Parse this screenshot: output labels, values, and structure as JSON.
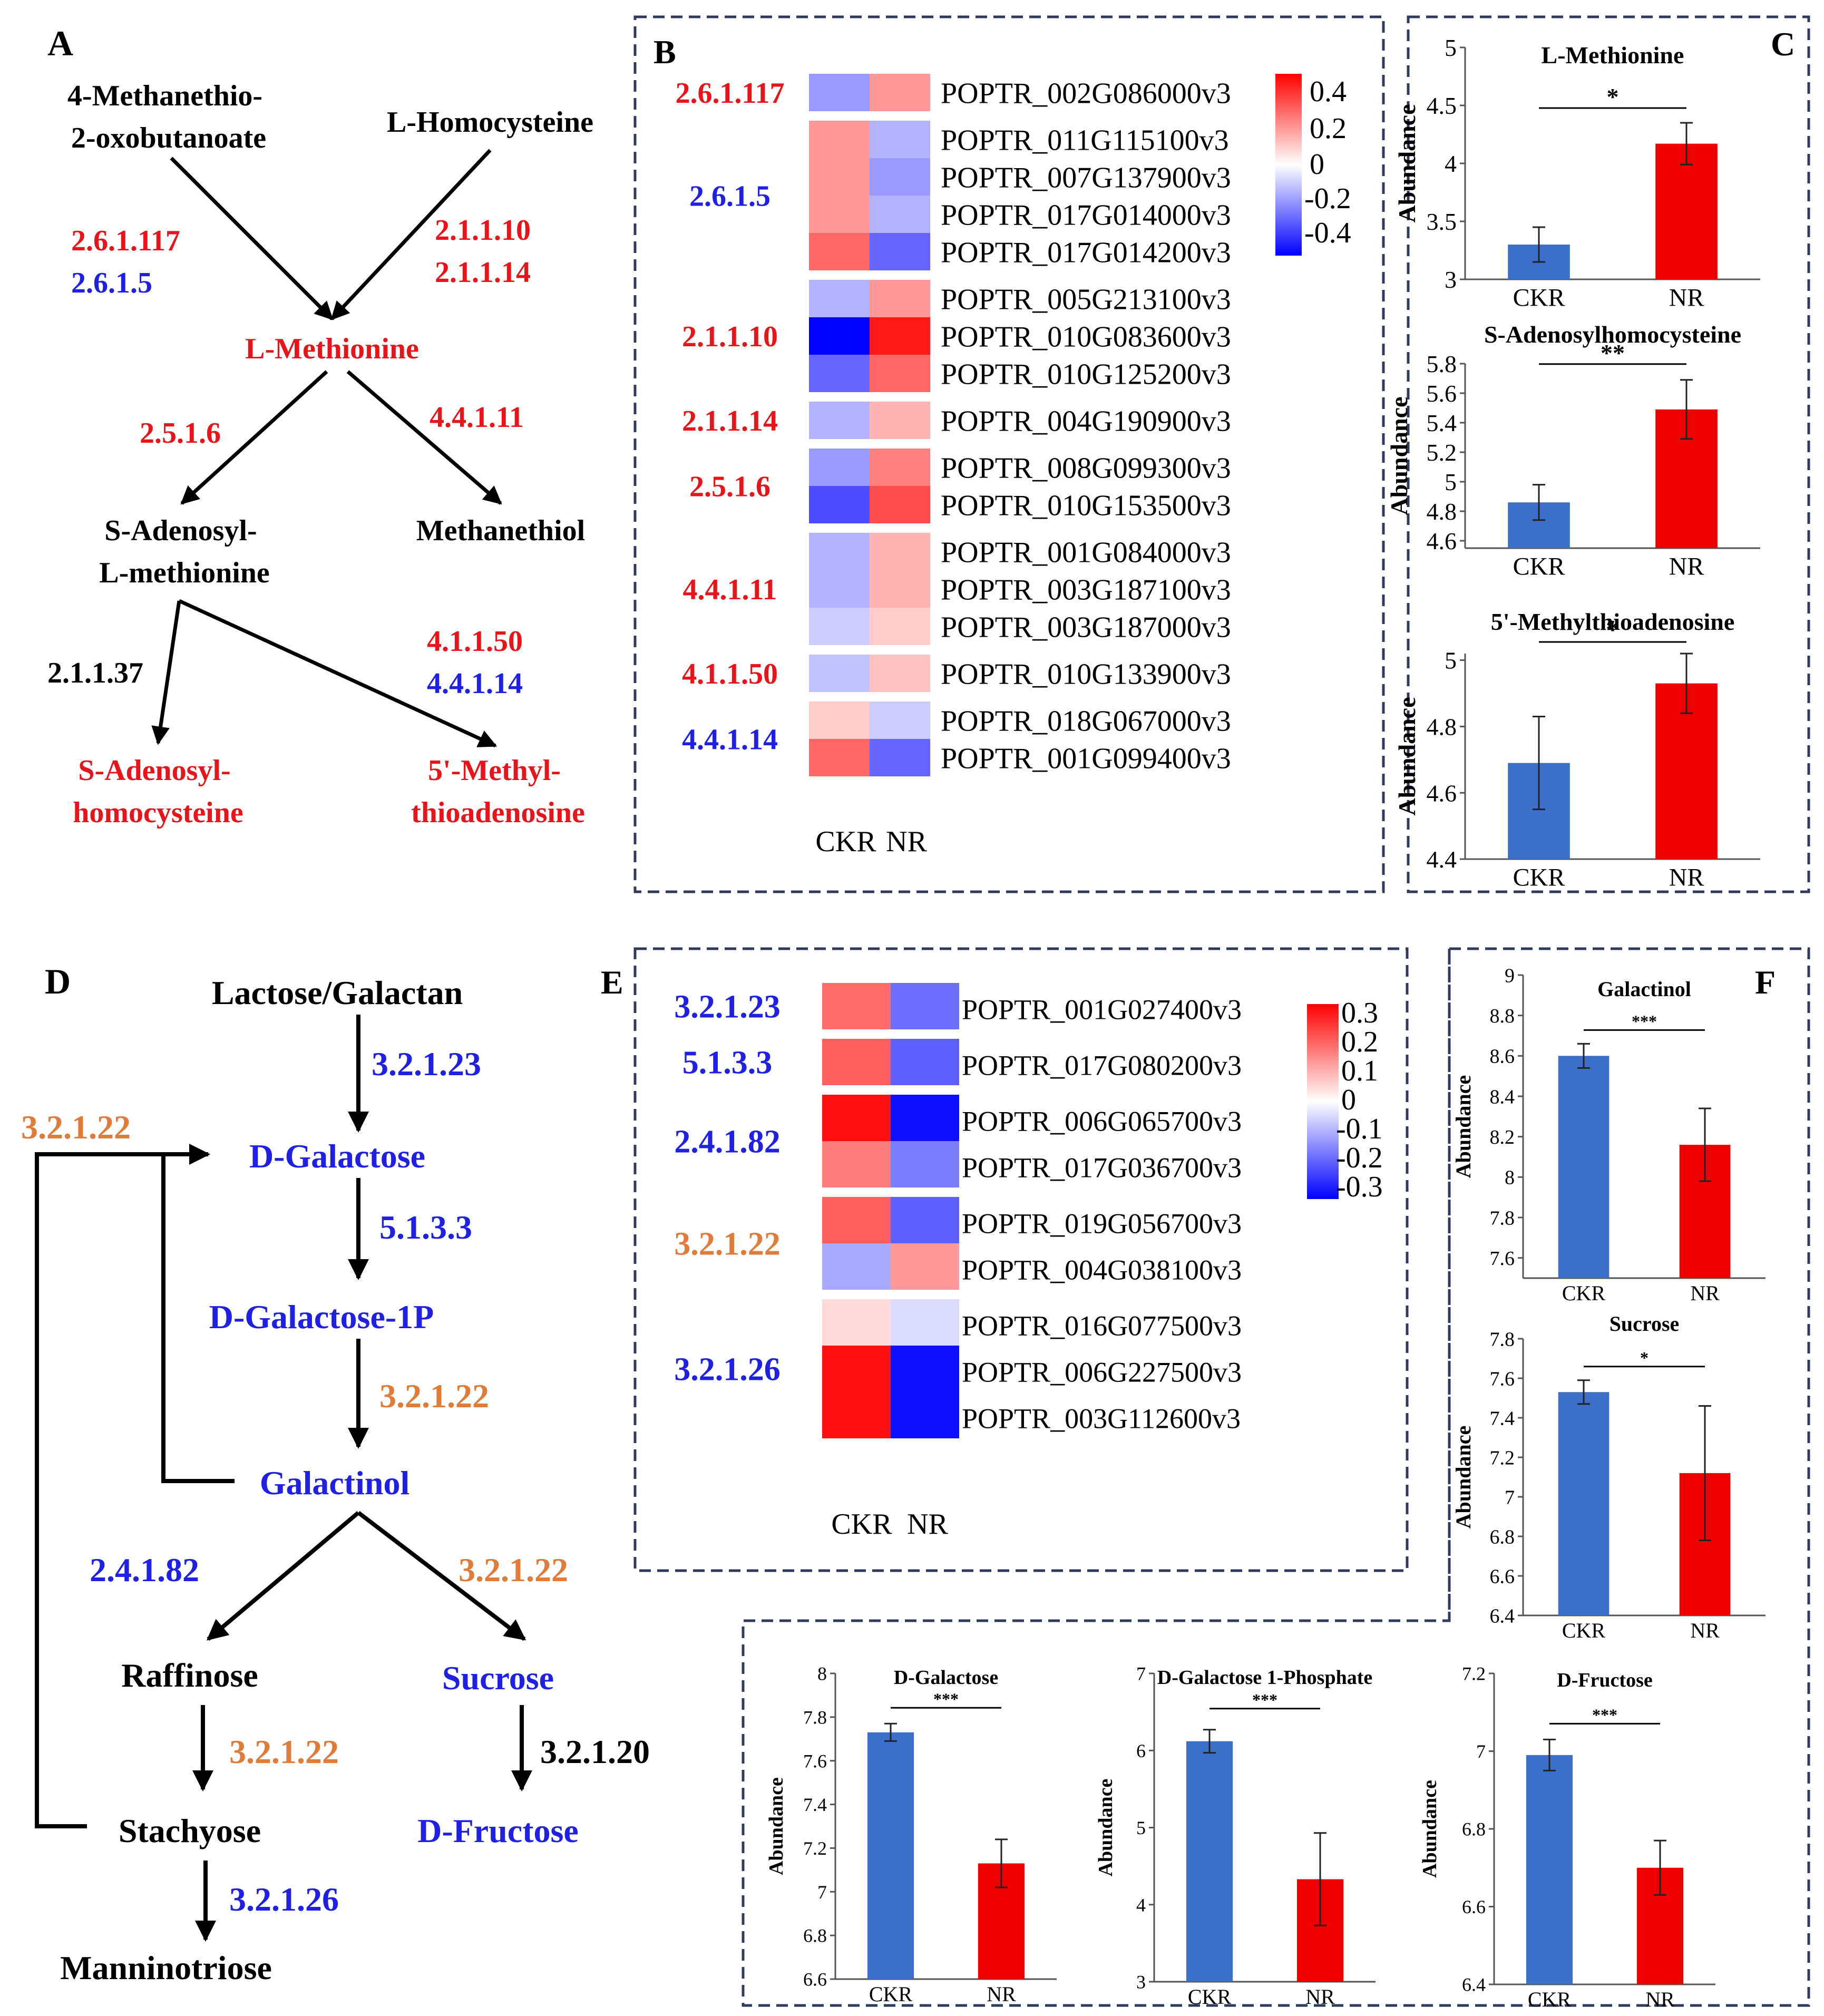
{
  "colors": {
    "red": "#e8141a",
    "blue": "#1f1fe6",
    "orange": "#e07b39",
    "black": "#000000",
    "bar_blue": "#3c6fc9",
    "bar_red": "#ee0000",
    "frame": "#2f3a5c"
  },
  "panelA": {
    "label": "A",
    "nodes": [
      {
        "lines": [
          "4-Methanethio-",
          "2-oxobutanoate"
        ],
        "color": "black"
      },
      {
        "lines": [
          "L-Homocysteine"
        ],
        "color": "black"
      },
      {
        "lines": [
          "L-Methionine"
        ],
        "color": "red"
      },
      {
        "lines": [
          "S-Adenosyl-",
          "L-methionine"
        ],
        "color": "black"
      },
      {
        "lines": [
          "Methanethiol"
        ],
        "color": "black"
      },
      {
        "lines": [
          "S-Adenosyl-",
          "homocysteine"
        ],
        "color": "red"
      },
      {
        "lines": [
          "5'-Methyl-",
          "thioadenosine"
        ],
        "color": "red"
      }
    ],
    "enzymes": [
      {
        "text": "2.6.1.117",
        "color": "red"
      },
      {
        "text": "2.6.1.5",
        "color": "blue"
      },
      {
        "text": "2.1.1.10",
        "color": "red"
      },
      {
        "text": "2.1.1.14",
        "color": "red"
      },
      {
        "text": "2.5.1.6",
        "color": "red"
      },
      {
        "text": "4.4.1.11",
        "color": "red"
      },
      {
        "text": "2.1.1.37",
        "color": "black"
      },
      {
        "text": "4.1.1.50",
        "color": "red"
      },
      {
        "text": "4.4.1.14",
        "color": "blue"
      }
    ]
  },
  "panelB": {
    "label": "B",
    "columns": [
      "CKR",
      "NR"
    ],
    "colorbar": {
      "ticks": [
        "0.4",
        "0.2",
        "0",
        "-0.2",
        "-0.4"
      ],
      "range": [
        -0.5,
        0.5
      ]
    },
    "groups": [
      {
        "ec": "2.6.1.117",
        "color": "red",
        "rows": [
          {
            "gene": "POPTR_002G086000v3",
            "values": [
              -0.2,
              0.2
            ]
          }
        ]
      },
      {
        "ec": "2.6.1.5",
        "color": "blue",
        "rows": [
          {
            "gene": "POPTR_011G115100v3",
            "values": [
              0.2,
              -0.15
            ]
          },
          {
            "gene": "POPTR_007G137900v3",
            "values": [
              0.2,
              -0.2
            ]
          },
          {
            "gene": "POPTR_017G014000v3",
            "values": [
              0.2,
              -0.15
            ]
          },
          {
            "gene": "POPTR_017G014200v3",
            "values": [
              0.3,
              -0.3
            ]
          }
        ]
      },
      {
        "ec": "2.1.1.10",
        "color": "red",
        "rows": [
          {
            "gene": "POPTR_005G213100v3",
            "values": [
              -0.15,
              0.2
            ]
          },
          {
            "gene": "POPTR_010G083600v3",
            "values": [
              -0.5,
              0.45
            ]
          },
          {
            "gene": "POPTR_010G125200v3",
            "values": [
              -0.3,
              0.3
            ]
          }
        ]
      },
      {
        "ec": "2.1.1.14",
        "color": "red",
        "rows": [
          {
            "gene": "POPTR_004G190900v3",
            "values": [
              -0.15,
              0.15
            ]
          }
        ]
      },
      {
        "ec": "2.5.1.6",
        "color": "red",
        "rows": [
          {
            "gene": "POPTR_008G099300v3",
            "values": [
              -0.2,
              0.25
            ]
          },
          {
            "gene": "POPTR_010G153500v3",
            "values": [
              -0.35,
              0.35
            ]
          }
        ]
      },
      {
        "ec": "4.4.1.11",
        "color": "red",
        "rows": [
          {
            "gene": "POPTR_001G084000v3",
            "values": [
              -0.15,
              0.15
            ]
          },
          {
            "gene": "POPTR_003G187100v3",
            "values": [
              -0.15,
              0.15
            ]
          },
          {
            "gene": "POPTR_003G187000v3",
            "values": [
              -0.1,
              0.1
            ]
          }
        ]
      },
      {
        "ec": "4.1.1.50",
        "color": "red",
        "rows": [
          {
            "gene": "POPTR_010G133900v3",
            "values": [
              -0.12,
              0.12
            ]
          }
        ]
      },
      {
        "ec": "4.4.1.14",
        "color": "blue",
        "rows": [
          {
            "gene": "POPTR_018G067000v3",
            "values": [
              0.1,
              -0.1
            ]
          },
          {
            "gene": "POPTR_001G099400v3",
            "values": [
              0.3,
              -0.3
            ]
          }
        ]
      }
    ]
  },
  "panelC": {
    "label": "C",
    "ylabel": "Abundance",
    "charts": [
      {
        "title": "L-Methionine",
        "ylim": [
          3,
          5
        ],
        "ticks": [
          "3",
          "3.5",
          "4",
          "4.5",
          "5"
        ],
        "tickvals": [
          3,
          3.5,
          4,
          4.5,
          5
        ],
        "categories": [
          "CKR",
          "NR"
        ],
        "values": [
          3.3,
          4.17
        ],
        "errors": [
          0.15,
          0.18
        ],
        "sig": "*"
      },
      {
        "title": "S-Adenosylhomocysteine",
        "ylim": [
          4.55,
          5.8
        ],
        "ticks": [
          "4.6",
          "4.8",
          "5",
          "5.2",
          "5.4",
          "5.6",
          "5.8"
        ],
        "tickvals": [
          4.6,
          4.8,
          5,
          5.2,
          5.4,
          5.6,
          5.8
        ],
        "categories": [
          "CKR",
          "NR"
        ],
        "values": [
          4.86,
          5.49
        ],
        "errors": [
          0.12,
          0.2
        ],
        "sig": "**"
      },
      {
        "title": "5'-Methylthioadenosine",
        "ylim": [
          4.4,
          5.02
        ],
        "ticks": [
          "4.4",
          "4.6",
          "4.8",
          "5"
        ],
        "tickvals": [
          4.4,
          4.6,
          4.8,
          5
        ],
        "categories": [
          "CKR",
          "NR"
        ],
        "values": [
          4.69,
          4.93
        ],
        "errors": [
          0.14,
          0.09
        ],
        "sig": "*"
      }
    ]
  },
  "panelD": {
    "label": "D",
    "nodes": [
      {
        "text": "Lactose/Galactan",
        "color": "black"
      },
      {
        "text": "D-Galactose",
        "color": "blue"
      },
      {
        "text": "D-Galactose-1P",
        "color": "blue"
      },
      {
        "text": "Galactinol",
        "color": "blue"
      },
      {
        "text": "Raffinose",
        "color": "black"
      },
      {
        "text": "Sucrose",
        "color": "blue"
      },
      {
        "text": "Stachyose",
        "color": "black"
      },
      {
        "text": "D-Fructose",
        "color": "blue"
      },
      {
        "text": "Manninotriose",
        "color": "black"
      }
    ],
    "enzymes": [
      {
        "text": "3.2.1.23",
        "color": "blue"
      },
      {
        "text": "3.2.1.22",
        "color": "orange"
      },
      {
        "text": "5.1.3.3",
        "color": "blue"
      },
      {
        "text": "3.2.1.22",
        "color": "orange"
      },
      {
        "text": "2.4.1.82",
        "color": "blue"
      },
      {
        "text": "3.2.1.22",
        "color": "orange"
      },
      {
        "text": "3.2.1.22",
        "color": "orange"
      },
      {
        "text": "3.2.1.20",
        "color": "black"
      },
      {
        "text": "3.2.1.26",
        "color": "blue"
      }
    ]
  },
  "panelE": {
    "label": "E",
    "columns": [
      "CKR",
      "NR"
    ],
    "colorbar": {
      "ticks": [
        "0.3",
        "0.2",
        "0.1",
        "0",
        "-0.1",
        "-0.2",
        "-0.3"
      ],
      "range": [
        -0.35,
        0.35
      ]
    },
    "groups": [
      {
        "ec": "3.2.1.23",
        "color": "blue",
        "rows": [
          {
            "gene": "POPTR_001G027400v3",
            "values": [
              0.2,
              -0.2
            ]
          }
        ]
      },
      {
        "ec": "5.1.3.3",
        "color": "blue",
        "rows": [
          {
            "gene": "POPTR_017G080200v3",
            "values": [
              0.22,
              -0.22
            ]
          }
        ]
      },
      {
        "ec": "2.4.1.82",
        "color": "blue",
        "rows": [
          {
            "gene": "POPTR_006G065700v3",
            "values": [
              0.33,
              -0.33
            ]
          },
          {
            "gene": "POPTR_017G036700v3",
            "values": [
              0.18,
              -0.18
            ]
          }
        ]
      },
      {
        "ec": "3.2.1.22",
        "color": "orange",
        "rows": [
          {
            "gene": "POPTR_019G056700v3",
            "values": [
              0.22,
              -0.22
            ]
          },
          {
            "gene": "POPTR_004G038100v3",
            "values": [
              -0.12,
              0.14
            ]
          }
        ]
      },
      {
        "ec": "3.2.1.26",
        "color": "blue",
        "rows": [
          {
            "gene": "POPTR_016G077500v3",
            "values": [
              0.05,
              -0.05
            ]
          },
          {
            "gene": "POPTR_006G227500v3",
            "values": [
              0.33,
              -0.33
            ]
          },
          {
            "gene": "POPTR_003G112600v3",
            "values": [
              0.33,
              -0.33
            ]
          }
        ]
      }
    ]
  },
  "panelF": {
    "label": "F",
    "ylabel": "Abundance",
    "charts": [
      {
        "title": "Galactinol",
        "ylim": [
          7.5,
          9
        ],
        "ticks": [
          "7.6",
          "7.8",
          "8",
          "8.2",
          "8.4",
          "8.6",
          "8.8",
          "9"
        ],
        "tickvals": [
          7.6,
          7.8,
          8,
          8.2,
          8.4,
          8.6,
          8.8,
          9
        ],
        "categories": [
          "CKR",
          "NR"
        ],
        "values": [
          8.6,
          8.16
        ],
        "errors": [
          0.06,
          0.18
        ],
        "sig": "***"
      },
      {
        "title": "Sucrose",
        "ylim": [
          6.4,
          7.8
        ],
        "ticks": [
          "6.4",
          "6.6",
          "6.8",
          "7",
          "7.2",
          "7.4",
          "7.6",
          "7.8"
        ],
        "tickvals": [
          6.4,
          6.6,
          6.8,
          7,
          7.2,
          7.4,
          7.6,
          7.8
        ],
        "categories": [
          "CKR",
          "NR"
        ],
        "values": [
          7.53,
          7.12
        ],
        "errors": [
          0.06,
          0.34
        ],
        "sig": "*"
      }
    ]
  },
  "panelG": {
    "ylabel": "Abundance",
    "charts": [
      {
        "title": "D-Galactose",
        "ylim": [
          6.6,
          8
        ],
        "ticks": [
          "6.6",
          "6.8",
          "7",
          "7.2",
          "7.4",
          "7.6",
          "7.8",
          "8"
        ],
        "tickvals": [
          6.6,
          6.8,
          7,
          7.2,
          7.4,
          7.6,
          7.8,
          8
        ],
        "categories": [
          "CKR",
          "NR"
        ],
        "values": [
          7.73,
          7.13
        ],
        "errors": [
          0.04,
          0.11
        ],
        "sig": "***"
      },
      {
        "title": "D-Galactose 1-Phosphate",
        "ylim": [
          3,
          7
        ],
        "ticks": [
          "3",
          "4",
          "5",
          "6",
          "7"
        ],
        "tickvals": [
          3,
          4,
          5,
          6,
          7
        ],
        "categories": [
          "CKR",
          "NR"
        ],
        "values": [
          6.12,
          4.33
        ],
        "errors": [
          0.15,
          0.6
        ],
        "sig": "***"
      },
      {
        "title": "D-Fructose",
        "ylim": [
          6.4,
          7.2
        ],
        "ticks": [
          "6.4",
          "6.6",
          "6.8",
          "7",
          "7.2"
        ],
        "tickvals": [
          6.4,
          6.6,
          6.8,
          7,
          7.2
        ],
        "categories": [
          "CKR",
          "NR"
        ],
        "values": [
          6.99,
          6.7
        ],
        "errors": [
          0.04,
          0.07
        ],
        "sig": "***"
      }
    ]
  }
}
